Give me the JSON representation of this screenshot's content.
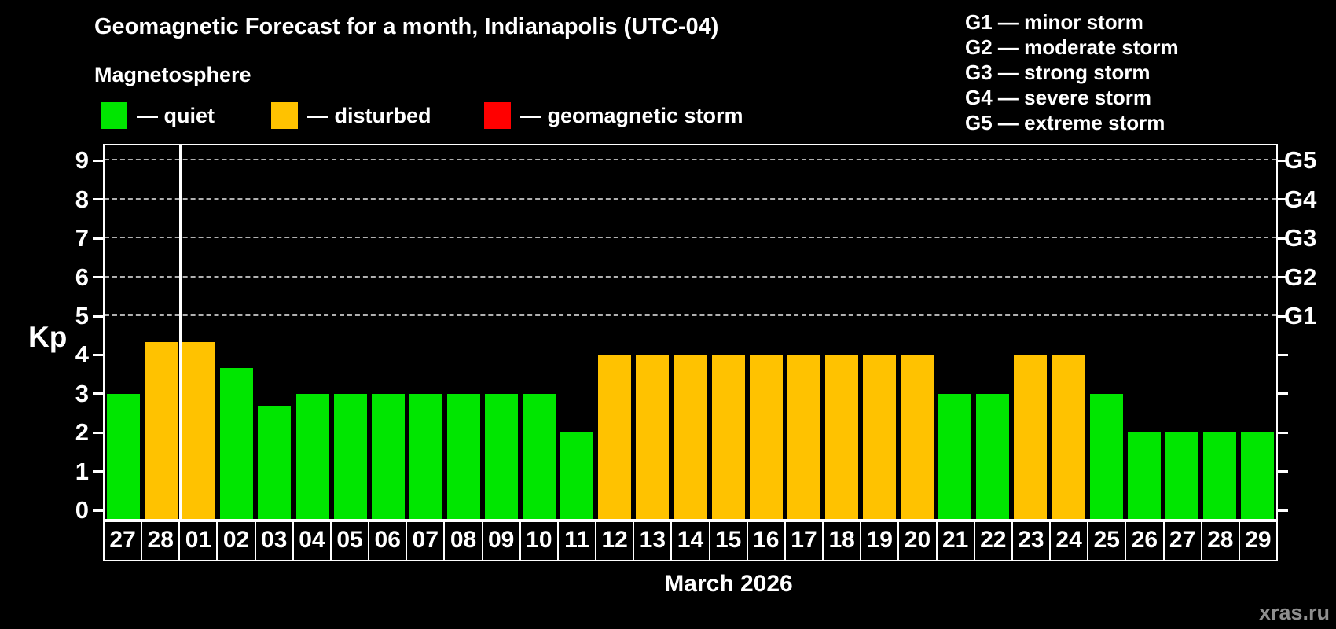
{
  "legend": {
    "title": "Magnetosphere",
    "items": [
      {
        "name": "quiet",
        "label": "— quiet",
        "color": "#00e600"
      },
      {
        "name": "disturbed",
        "label": "— disturbed",
        "color": "#ffc200"
      },
      {
        "name": "storm",
        "label": "— geomagnetic storm",
        "color": "#ff0000"
      }
    ]
  },
  "g_legend": [
    "G1 — minor storm",
    "G2 — moderate storm",
    "G3 — strong storm",
    "G4 — severe storm",
    "G5 — extreme storm"
  ],
  "footer": {
    "watermark": "xras.ru"
  },
  "chart_data": {
    "type": "bar",
    "title": "Geomagnetic Forecast for a month, Indianapolis (UTC-04)",
    "xlabel": "March 2026",
    "ylabel": "Kp",
    "ylim": [
      0,
      9.6
    ],
    "yticks": [
      0,
      1,
      2,
      3,
      4,
      5,
      6,
      7,
      8,
      9
    ],
    "gridlines_at": [
      5,
      6,
      7,
      8,
      9
    ],
    "grid": "dashed-horizontal-G-levels-only",
    "legend_position": "top",
    "right_axis": [
      {
        "kp": 5,
        "label": "G1"
      },
      {
        "kp": 6,
        "label": "G2"
      },
      {
        "kp": 7,
        "label": "G3"
      },
      {
        "kp": 8,
        "label": "G4"
      },
      {
        "kp": 9,
        "label": "G5"
      }
    ],
    "categories": [
      "27",
      "28",
      "01",
      "02",
      "03",
      "04",
      "05",
      "06",
      "07",
      "08",
      "09",
      "10",
      "11",
      "12",
      "13",
      "14",
      "15",
      "16",
      "17",
      "18",
      "19",
      "20",
      "21",
      "22",
      "23",
      "24",
      "25",
      "26",
      "27",
      "28",
      "29"
    ],
    "values": [
      3,
      4.33,
      4.33,
      3.67,
      2.67,
      3,
      3,
      3,
      3,
      3,
      3,
      3,
      2,
      4,
      4,
      4,
      4,
      4,
      4,
      4,
      4,
      4,
      3,
      3,
      4,
      4,
      3,
      2,
      2,
      2,
      2
    ],
    "statuses": [
      "quiet",
      "disturbed",
      "disturbed",
      "quiet",
      "quiet",
      "quiet",
      "quiet",
      "quiet",
      "quiet",
      "quiet",
      "quiet",
      "quiet",
      "quiet",
      "disturbed",
      "disturbed",
      "disturbed",
      "disturbed",
      "disturbed",
      "disturbed",
      "disturbed",
      "disturbed",
      "disturbed",
      "quiet",
      "quiet",
      "disturbed",
      "disturbed",
      "quiet",
      "quiet",
      "quiet",
      "quiet",
      "quiet"
    ],
    "status_colors": {
      "quiet": "#00e600",
      "disturbed": "#ffc200",
      "storm": "#ff0000"
    },
    "month_boundary_after_index": 1
  }
}
